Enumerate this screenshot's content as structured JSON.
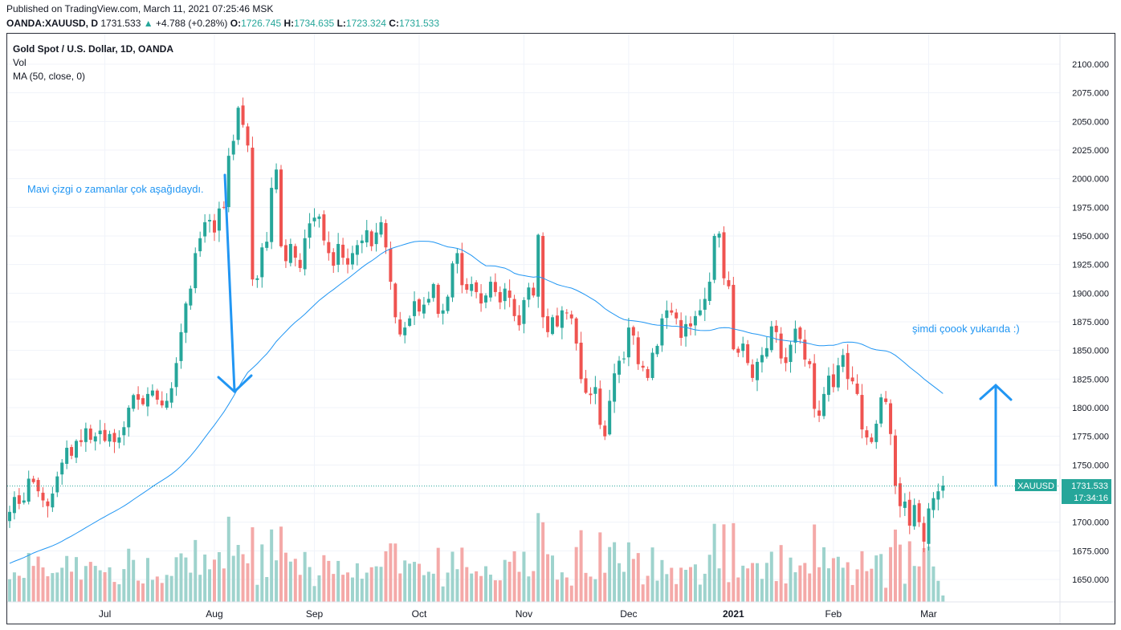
{
  "header": {
    "published": "Published on TradingView.com, March 11, 2021 07:25:46 MSK",
    "symbol": "OANDA:XAUUSD, D",
    "last": "1731.533",
    "change_arrow": "▲",
    "change": "+4.788 (+0.28%)",
    "o_label": "O:",
    "o_value": "1726.745",
    "h_label": "H:",
    "h_value": "1734.635",
    "l_label": "L:",
    "l_value": "1723.324",
    "c_label": "C:",
    "c_value": "1731.533"
  },
  "legend": {
    "title": "Gold Spot / U.S. Dollar, 1D, OANDA",
    "vol": "Vol",
    "ma": "MA (50, close, 0)"
  },
  "annotations": {
    "left_note": "Mavi çizgi o zamanlar çok aşağıdaydı.",
    "right_note": "şimdi çoook yukarıda :)"
  },
  "price_tag": {
    "symbol": "XAUUSD",
    "price": "1731.533",
    "countdown": "17:34:16"
  },
  "colors": {
    "up": "#26a69a",
    "down": "#ef5350",
    "up_volume": "#9ed3cd",
    "down_volume": "#f4a9a8",
    "ma": "#2196f3",
    "arrow": "#2196f3",
    "grid": "#f0f3fa",
    "tag": "#26a69a"
  },
  "chart_data": {
    "type": "candlestick",
    "y_ticks": [
      1650,
      1675,
      1700,
      1725,
      1750,
      1775,
      1800,
      1825,
      1850,
      1875,
      1900,
      1925,
      1950,
      1975,
      2000,
      2025,
      2050,
      2075,
      2100
    ],
    "y_tick_labels": [
      "1650.000",
      "1675.000",
      "1700.000",
      "1725.000",
      "1750.000",
      "1775.000",
      "1800.000",
      "1825.000",
      "1850.000",
      "1875.000",
      "1900.000",
      "1925.000",
      "1950.000",
      "1975.000",
      "2000.000",
      "2025.000",
      "2050.000",
      "2075.000",
      "2100.000"
    ],
    "ylim": [
      1630,
      2120
    ],
    "x_labels": [
      {
        "label": "Jul",
        "i": 20
      },
      {
        "label": "Aug",
        "i": 43
      },
      {
        "label": "Sep",
        "i": 64
      },
      {
        "label": "Oct",
        "i": 86
      },
      {
        "label": "Nov",
        "i": 108
      },
      {
        "label": "Dec",
        "i": 130
      },
      {
        "label": "2021",
        "i": 152
      },
      {
        "label": "Feb",
        "i": 173
      },
      {
        "label": "Mar",
        "i": 193
      }
    ],
    "last_price": 1731.533,
    "closes": [
      1709,
      1722,
      1716,
      1719,
      1738,
      1735,
      1727,
      1719,
      1714,
      1725,
      1740,
      1752,
      1765,
      1758,
      1771,
      1770,
      1782,
      1772,
      1775,
      1780,
      1771,
      1777,
      1770,
      1774,
      1783,
      1800,
      1811,
      1807,
      1803,
      1812,
      1815,
      1807,
      1802,
      1806,
      1817,
      1839,
      1866,
      1891,
      1904,
      1935,
      1948,
      1962,
      1964,
      1953,
      1974,
      1975,
      2020,
      2033,
      2062,
      2047,
      2029,
      1912,
      1913,
      1940,
      1945,
      1992,
      2008,
      1941,
      1928,
      1943,
      1931,
      1922,
      1948,
      1961,
      1966,
      1967,
      1946,
      1935,
      1924,
      1943,
      1931,
      1925,
      1935,
      1942,
      1946,
      1955,
      1941,
      1953,
      1962,
      1940,
      1910,
      1879,
      1864,
      1870,
      1878,
      1893,
      1884,
      1890,
      1895,
      1908,
      1882,
      1885,
      1897,
      1926,
      1935,
      1907,
      1903,
      1908,
      1901,
      1891,
      1898,
      1910,
      1901,
      1892,
      1904,
      1896,
      1880,
      1872,
      1894,
      1905,
      1898,
      1951,
      1879,
      1866,
      1879,
      1871,
      1885,
      1883,
      1878,
      1856,
      1825,
      1813,
      1811,
      1818,
      1785,
      1775,
      1806,
      1830,
      1841,
      1843,
      1870,
      1863,
      1838,
      1835,
      1826,
      1848,
      1854,
      1878,
      1885,
      1883,
      1878,
      1861,
      1873,
      1871,
      1880,
      1885,
      1895,
      1910,
      1950,
      1952,
      1913,
      1906,
      1851,
      1848,
      1856,
      1839,
      1826,
      1840,
      1846,
      1852,
      1871,
      1866,
      1843,
      1839,
      1855,
      1869,
      1860,
      1842,
      1838,
      1799,
      1793,
      1812,
      1828,
      1818,
      1837,
      1846,
      1825,
      1823,
      1812,
      1781,
      1774,
      1770,
      1786,
      1809,
      1805,
      1777,
      1732,
      1714,
      1718,
      1697,
      1715,
      1700,
      1683,
      1712,
      1721,
      1727,
      1732
    ],
    "ma_50_start_index": 0
  }
}
